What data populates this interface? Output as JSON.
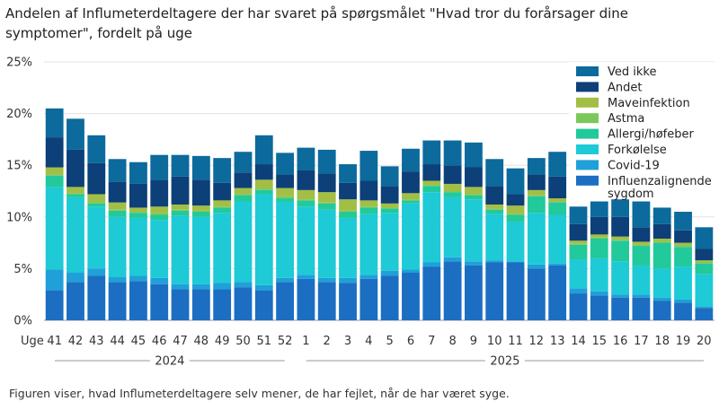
{
  "title": "Andelen af Influmeterdeltagere der har svaret på spørgsmålet \"Hvad tror du forårsager dine symptomer\", fordelt på uge",
  "caption": "Figuren viser, hvad Influmeterdeltagere selv mener, de har fejlet, når de har været syge.",
  "chart_data": {
    "type": "bar",
    "stacked": true,
    "title": "Andelen af Influmeterdeltagere der har svaret på spørgsmålet \"Hvad tror du forårsager dine symptomer\", fordelt på uge",
    "xlabel": "Uge",
    "ylabel": "",
    "ylim": [
      0,
      25
    ],
    "yticks": [
      "0%",
      "5%",
      "10%",
      "15%",
      "20%",
      "25%"
    ],
    "categories": [
      "41",
      "42",
      "43",
      "44",
      "45",
      "46",
      "47",
      "48",
      "49",
      "50",
      "51",
      "52",
      "1",
      "2",
      "3",
      "4",
      "5",
      "6",
      "7",
      "8",
      "9",
      "10",
      "11",
      "12",
      "13",
      "14",
      "15",
      "16",
      "17",
      "18",
      "19",
      "20"
    ],
    "year_groups": [
      {
        "label": "2024",
        "from": 0,
        "to": 11
      },
      {
        "label": "2025",
        "from": 12,
        "to": 31
      }
    ],
    "legend_position": "top-right",
    "series": [
      {
        "name": "Influenzalignende sygdom",
        "color": "#1b6ec2",
        "values": [
          2.9,
          3.7,
          4.3,
          3.7,
          3.8,
          3.5,
          3.0,
          3.0,
          3.0,
          3.2,
          2.9,
          3.7,
          4.0,
          3.7,
          3.6,
          4.0,
          4.3,
          4.6,
          5.2,
          5.7,
          5.3,
          5.6,
          5.6,
          5.0,
          5.3,
          2.6,
          2.4,
          2.2,
          2.2,
          1.9,
          1.7,
          1.2
        ]
      },
      {
        "name": "Covid-19",
        "color": "#1fa0d8",
        "values": [
          2.0,
          0.9,
          0.7,
          0.5,
          0.5,
          0.6,
          0.5,
          0.5,
          0.6,
          0.5,
          0.5,
          0.4,
          0.4,
          0.4,
          0.5,
          0.4,
          0.5,
          0.3,
          0.4,
          0.4,
          0.4,
          0.2,
          0.1,
          0.4,
          0.2,
          0.5,
          0.4,
          0.3,
          0.3,
          0.3,
          0.3,
          0.1
        ]
      },
      {
        "name": "Forkølelse",
        "color": "#1dcad6",
        "values": [
          8.0,
          7.3,
          6.0,
          5.8,
          5.6,
          5.6,
          6.6,
          6.5,
          6.8,
          7.8,
          8.8,
          7.4,
          6.6,
          6.6,
          5.8,
          5.9,
          5.6,
          6.4,
          6.8,
          5.8,
          6.0,
          4.5,
          3.8,
          5.0,
          4.7,
          2.8,
          3.2,
          3.2,
          2.8,
          2.8,
          3.2,
          3.2
        ]
      },
      {
        "name": "Allergi/høfeber",
        "color": "#22c99a",
        "values": [
          1.1,
          0.3,
          0.3,
          0.6,
          0.5,
          0.5,
          0.5,
          0.5,
          0.5,
          0.6,
          0.4,
          0.3,
          0.6,
          0.6,
          0.6,
          0.6,
          0.4,
          0.3,
          0.6,
          0.5,
          0.4,
          0.4,
          0.7,
          1.6,
          1.2,
          1.4,
          1.9,
          2.0,
          1.9,
          2.5,
          1.9,
          1.0
        ]
      },
      {
        "name": "Astma",
        "color": "#7bc85a",
        "values": [
          0.1,
          0.1,
          0.2,
          0.1,
          0.1,
          0.2,
          0.1,
          0.1,
          0.1,
          0.1,
          0.2,
          0.2,
          0.1,
          0.1,
          0.1,
          0.1,
          0.1,
          0.1,
          0.1,
          0.1,
          0.1,
          0.1,
          0.1,
          0.1,
          0.1,
          0.1,
          0.1,
          0.1,
          0.1,
          0.1,
          0.1,
          0.1
        ]
      },
      {
        "name": "Maveinfektion",
        "color": "#a3be45",
        "values": [
          0.7,
          0.6,
          0.7,
          0.7,
          0.4,
          0.6,
          0.5,
          0.5,
          0.6,
          0.6,
          0.8,
          0.8,
          0.9,
          1.0,
          1.1,
          0.6,
          0.4,
          0.6,
          0.4,
          0.7,
          0.7,
          0.4,
          0.8,
          0.5,
          0.3,
          0.3,
          0.3,
          0.3,
          0.3,
          0.3,
          0.3,
          0.2
        ]
      },
      {
        "name": "Andet",
        "color": "#0d3f78",
        "values": [
          2.9,
          3.6,
          3.0,
          2.0,
          2.3,
          2.6,
          2.7,
          2.5,
          1.7,
          1.5,
          1.5,
          1.3,
          1.9,
          1.8,
          1.6,
          1.9,
          1.7,
          2.1,
          1.6,
          1.8,
          1.9,
          1.8,
          1.1,
          1.5,
          2.1,
          1.6,
          1.7,
          1.9,
          1.4,
          1.4,
          1.2,
          1.1
        ]
      },
      {
        "name": "Ved ikke",
        "color": "#0c6a9c",
        "values": [
          2.8,
          3.0,
          2.7,
          2.2,
          2.1,
          2.4,
          2.1,
          2.3,
          2.4,
          2.0,
          2.8,
          2.1,
          2.2,
          2.3,
          1.8,
          2.9,
          1.9,
          2.2,
          2.3,
          2.4,
          2.4,
          2.6,
          2.5,
          1.6,
          2.4,
          1.7,
          1.5,
          1.7,
          2.5,
          1.6,
          1.8,
          2.1
        ]
      }
    ]
  }
}
